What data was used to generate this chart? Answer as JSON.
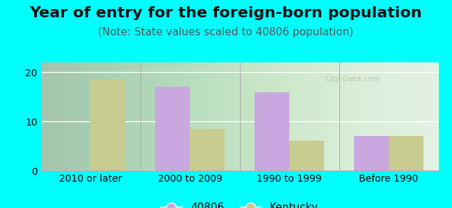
{
  "title": "Year of entry for the foreign-born population",
  "subtitle": "(Note: State values scaled to 40806 population)",
  "categories": [
    "2010 or later",
    "2000 to 2009",
    "1990 to 1999",
    "Before 1990"
  ],
  "series_40806": [
    0,
    17.0,
    16.0,
    7.0
  ],
  "series_kentucky": [
    18.5,
    8.5,
    6.0,
    7.0
  ],
  "color_40806": "#c9a8e0",
  "color_kentucky": "#c8cc90",
  "background_color": "#00FFFF",
  "ylim": [
    0,
    22
  ],
  "yticks": [
    0,
    10,
    20
  ],
  "title_fontsize": 16,
  "subtitle_fontsize": 11,
  "tick_fontsize": 10,
  "legend_label_40806": "40806",
  "legend_label_kentucky": "Kentucky",
  "bar_width": 0.35
}
